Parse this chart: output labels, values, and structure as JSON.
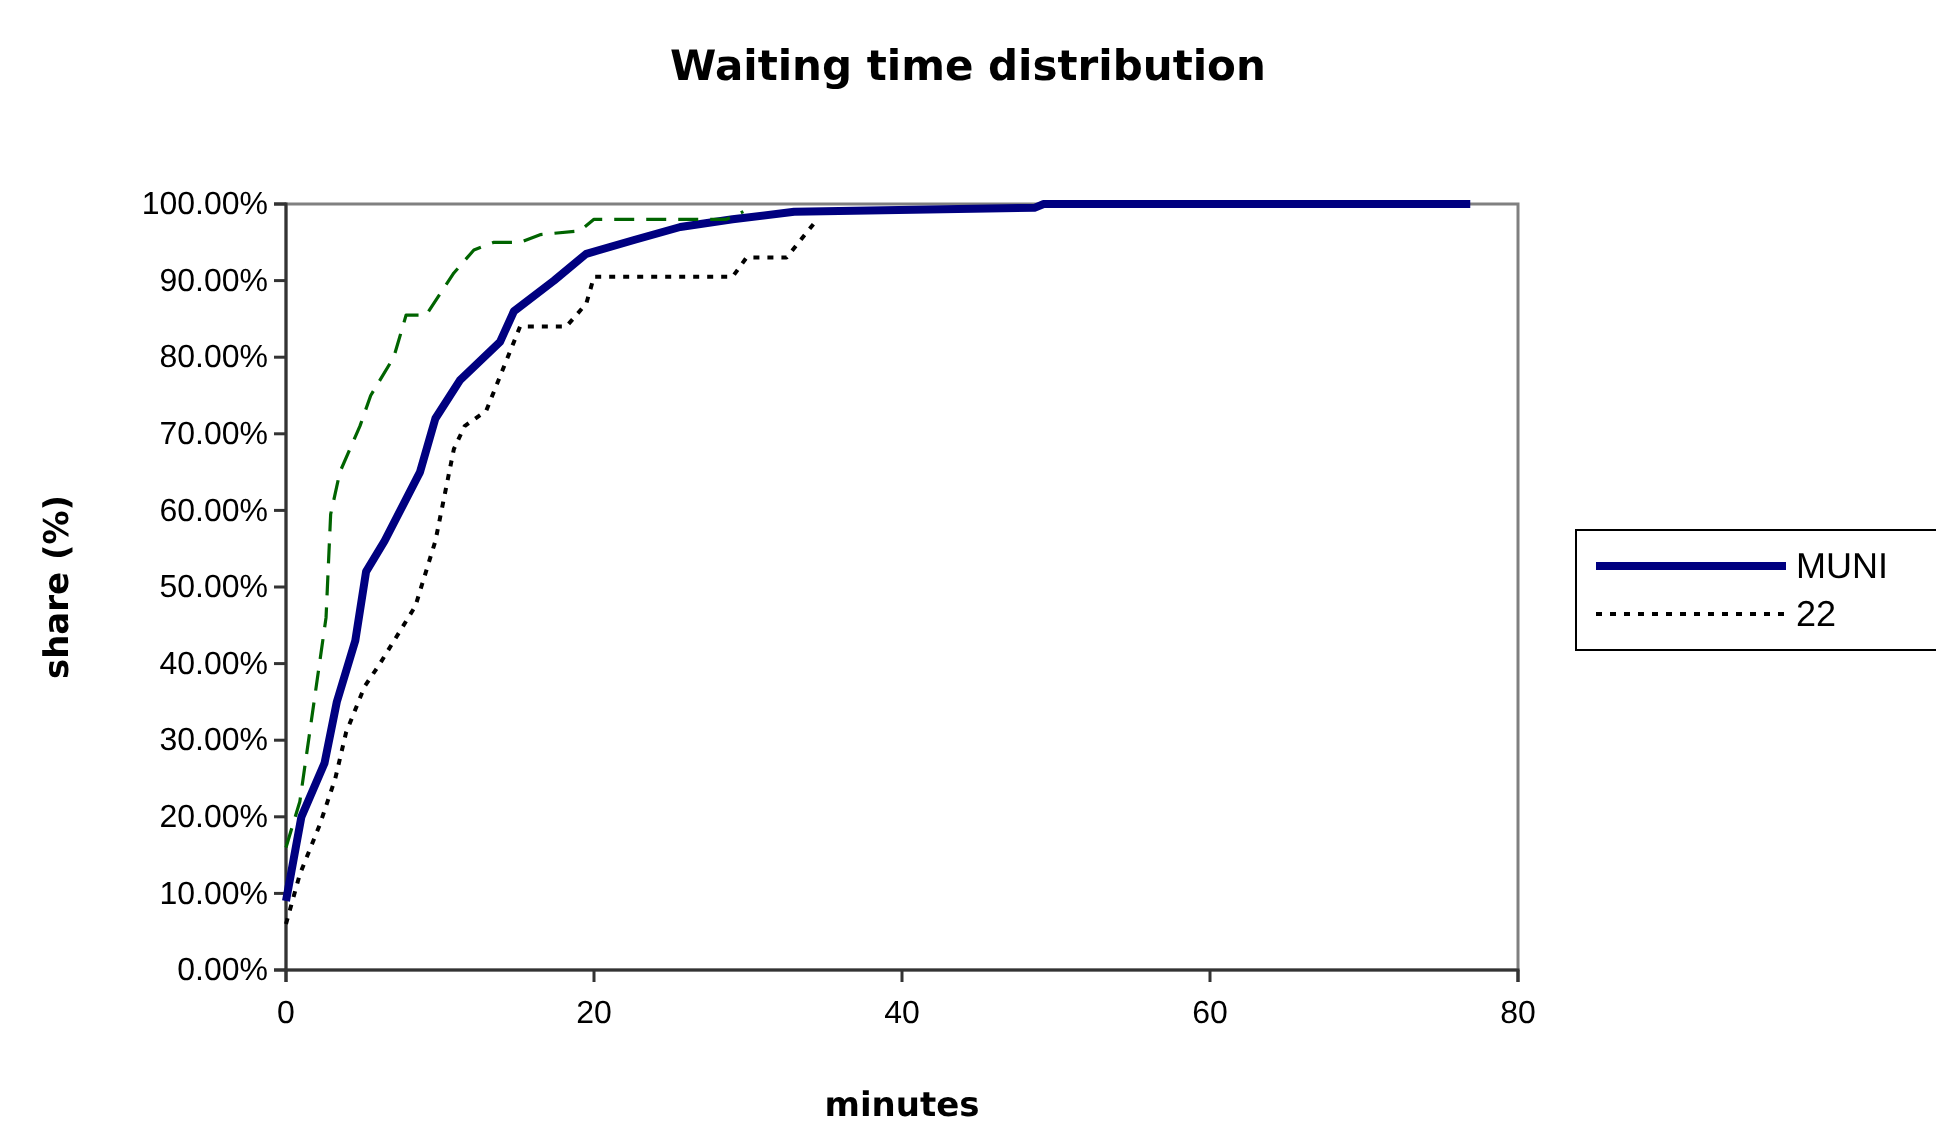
{
  "chart_data": {
    "type": "line",
    "title": "Waiting time distribution",
    "xlabel": "minutes",
    "ylabel": "share (%)",
    "xlim": [
      0,
      80
    ],
    "xticks": [
      0,
      20,
      40,
      60,
      80
    ],
    "ylim": [
      0,
      1
    ],
    "yticks": [
      {
        "value": 0,
        "label": "0.00%"
      },
      {
        "value": 0.1,
        "label": "10.00%"
      },
      {
        "value": 0.2,
        "label": "20.00%"
      },
      {
        "value": 0.3,
        "label": "30.00%"
      },
      {
        "value": 0.4,
        "label": "40.00%"
      },
      {
        "value": 0.5,
        "label": "50.00%"
      },
      {
        "value": 0.6,
        "label": "60.00%"
      },
      {
        "value": 0.7,
        "label": "70.00%"
      },
      {
        "value": 0.8,
        "label": "80.00%"
      },
      {
        "value": 0.9,
        "label": "90.00%"
      },
      {
        "value": 1,
        "label": "100.00%"
      }
    ],
    "grid": false,
    "legend": "right",
    "marker": "none",
    "series": [
      {
        "name": "MUNI",
        "color": "#000080",
        "line_style": "solid",
        "x": [
          0,
          1,
          2.5,
          3.3,
          4.5,
          5.2,
          6.4,
          8.7,
          9.7,
          11.3,
          13.9,
          14.8,
          17.4,
          19.5,
          22.6,
          25.6,
          29,
          33,
          48.6,
          49.2,
          76.9
        ],
        "values": [
          0.09,
          0.2,
          0.27,
          0.35,
          0.43,
          0.52,
          0.56,
          0.65,
          0.72,
          0.77,
          0.82,
          0.86,
          0.9,
          0.935,
          0.953,
          0.97,
          0.98,
          0.99,
          0.995,
          1,
          1
        ]
      },
      {
        "name": "22",
        "color": "#000000",
        "line_style": "dotted",
        "x": [
          0,
          0.9,
          2.2,
          3.2,
          3.9,
          5.1,
          6.1,
          8.4,
          9.7,
          10.3,
          10.9,
          11.6,
          13,
          14.8,
          15.2,
          18.2,
          19.5,
          20,
          29,
          29.9,
          32.5,
          34.3
        ],
        "values": [
          0.06,
          0.125,
          0.19,
          0.25,
          0.31,
          0.37,
          0.4,
          0.475,
          0.56,
          0.62,
          0.68,
          0.71,
          0.73,
          0.82,
          0.84,
          0.84,
          0.87,
          0.905,
          0.905,
          0.93,
          0.93,
          0.975
        ]
      },
      {
        "color": "#006400",
        "line_style": "dashed",
        "x": [
          0,
          0.9,
          2.6,
          2.9,
          3.5,
          4.8,
          5.5,
          7,
          7.8,
          9.1,
          10.9,
          12.2,
          13.5,
          15.2,
          16.5,
          19.1,
          20,
          28.6,
          29.7
        ],
        "values": [
          0.16,
          0.22,
          0.46,
          0.595,
          0.65,
          0.71,
          0.75,
          0.8,
          0.855,
          0.855,
          0.91,
          0.94,
          0.95,
          0.95,
          0.96,
          0.965,
          0.98,
          0.98,
          0.99
        ]
      }
    ]
  }
}
